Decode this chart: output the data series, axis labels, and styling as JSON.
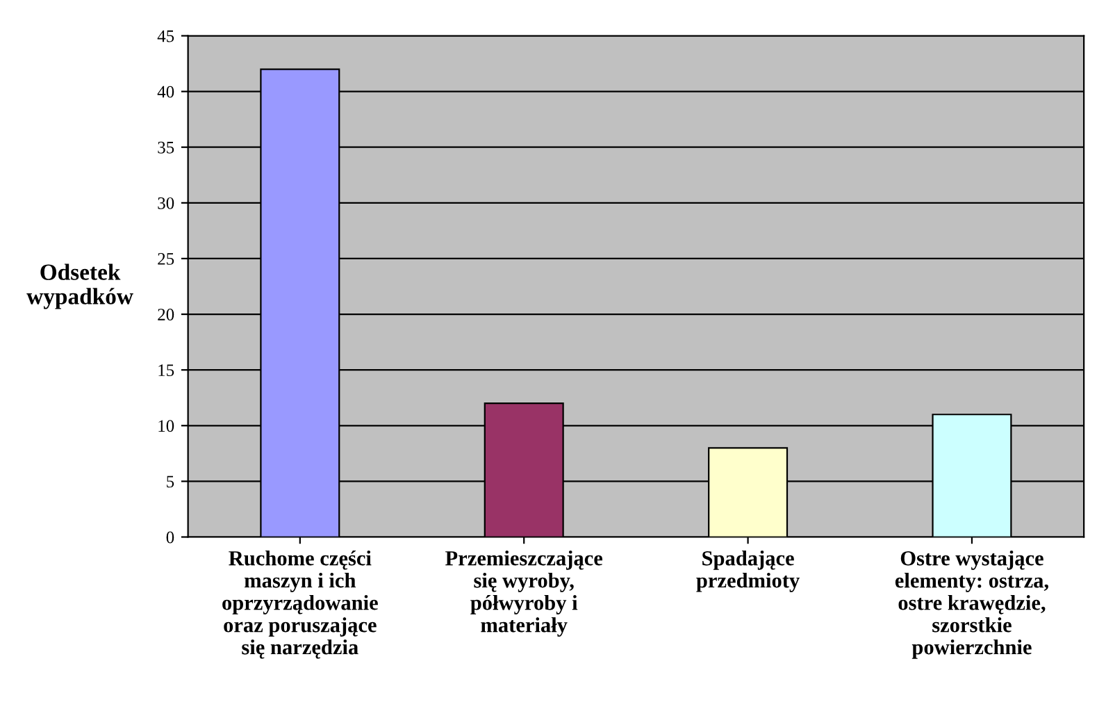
{
  "chart_data": {
    "type": "bar",
    "ylabel": "Odsetek\nwypadków",
    "categories": [
      "Ruchome części\nmaszyn i ich\noprzyrządowanie\noraz poruszające\nsię narzędzia",
      "Przemieszczające\nsię wyroby,\npółwyroby i\nmateriały",
      "Spadające\nprzedmioty",
      "Ostre wystające\nelementy: ostrza,\nostre krawędzie,\nszorstkie\npowierzchnie"
    ],
    "values": [
      42,
      12,
      8,
      11
    ],
    "colors": [
      "#9999ff",
      "#993366",
      "#ffffcc",
      "#ccffff"
    ],
    "ylim": [
      0,
      45
    ],
    "yticks": [
      0,
      5,
      10,
      15,
      20,
      25,
      30,
      35,
      40,
      45
    ],
    "grid": "y"
  }
}
